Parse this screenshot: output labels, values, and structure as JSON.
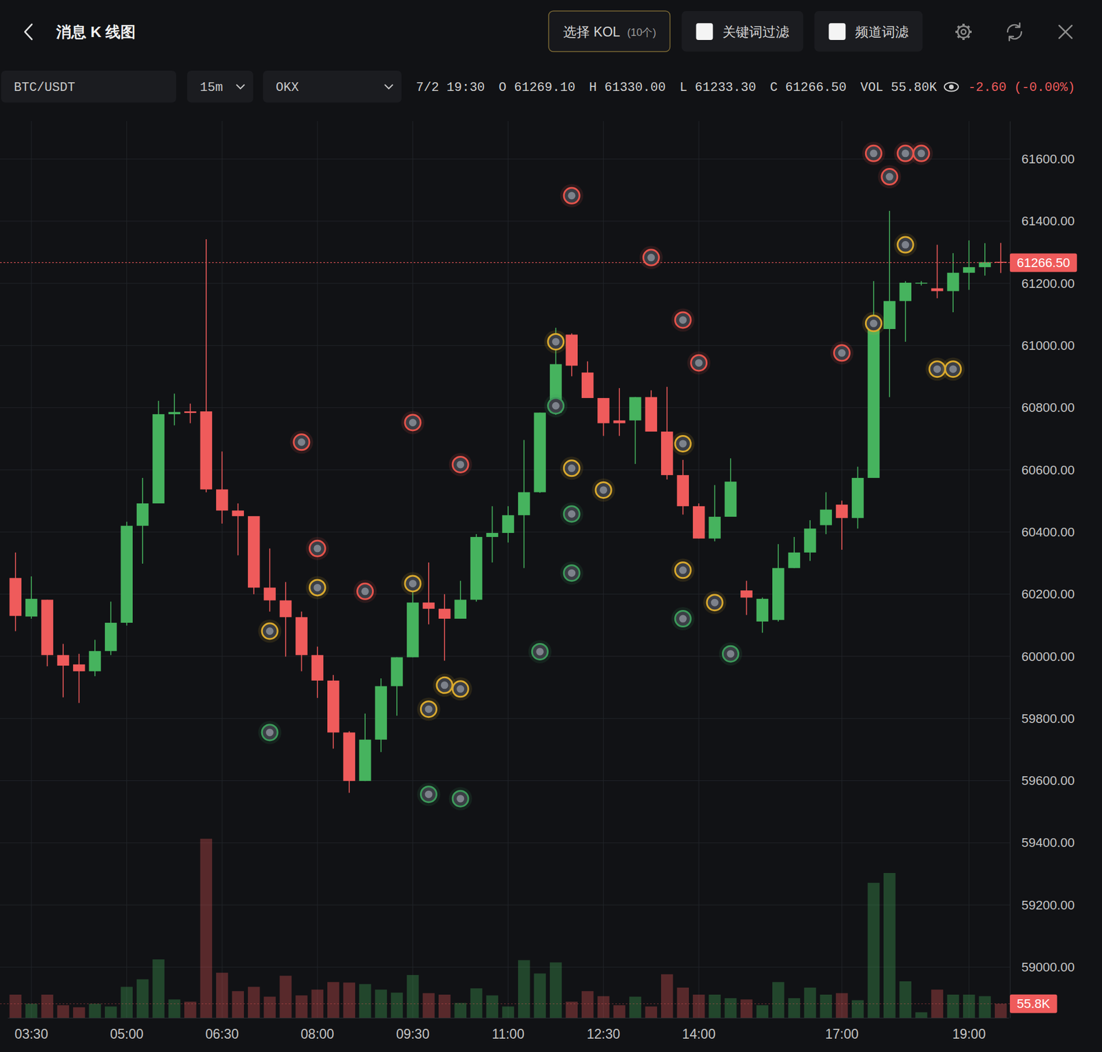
{
  "app": {
    "title": "消息 K 线图",
    "kol_button": {
      "label": "选择 KOL",
      "count": "(10个)"
    },
    "filters": [
      "关键词过滤",
      "频道词滤"
    ],
    "symbol": "BTC/USDT",
    "interval": "15m",
    "exchange": "OKX",
    "info": {
      "time": "7/2 19:30",
      "fields": [
        "O 61269.10",
        "H 61330.00",
        "L 61233.30",
        "C 61266.50",
        "VOL 55.80K"
      ],
      "change": "-2.60 (-0.00%)"
    }
  },
  "chart_data": {
    "type": "candlestick",
    "categories": [
      null,
      "03:30",
      null,
      null,
      null,
      null,
      null,
      "05:00",
      null,
      null,
      null,
      null,
      null,
      "06:30",
      null,
      null,
      null,
      null,
      null,
      "08:00",
      null,
      null,
      null,
      null,
      null,
      "09:30",
      null,
      null,
      null,
      null,
      null,
      "11:00",
      null,
      null,
      null,
      null,
      null,
      "12:30",
      null,
      null,
      null,
      null,
      null,
      "14:00",
      null,
      null,
      null,
      null,
      null,
      null,
      null,
      null,
      "17:00",
      null,
      null,
      null,
      null,
      null,
      null,
      null,
      "19:00",
      null,
      null
    ],
    "series": [
      {
        "type": "candlestick",
        "open": [
          60252,
          60128,
          60182,
          60004,
          59974,
          59952,
          60017,
          60108,
          60420,
          60492,
          60779,
          60788,
          60788,
          60537,
          60469,
          60451,
          60221,
          60180,
          60126,
          60004,
          59922,
          59755,
          59599,
          59732,
          59904,
          59997,
          60173,
          60153,
          60121,
          60182,
          60384,
          60397,
          60454,
          60528,
          60784,
          61035,
          60913,
          60831,
          60759,
          60759,
          60834,
          60723,
          60583,
          60483,
          60379,
          60449,
          60212,
          60112,
          60117,
          60284,
          60334,
          60422,
          60488,
          60445,
          60574,
          61053,
          61143,
          61200,
          61184,
          61175,
          61234,
          61252,
          61269.1
        ],
        "high": [
          60334,
          60257,
          60182,
          60040,
          60008,
          60053,
          60176,
          60433,
          60574,
          60822,
          60845,
          60813,
          61342,
          60659,
          60492,
          60451,
          60347,
          60239,
          60144,
          60031,
          59940,
          59759,
          59816,
          59929,
          59997,
          60257,
          60302,
          60200,
          60243,
          60393,
          60483,
          60483,
          60696,
          60784,
          61057,
          61039,
          60949,
          60831,
          60863,
          60834,
          60856,
          60867,
          60632,
          60492,
          60551,
          60637,
          60243,
          60189,
          60361,
          60384,
          60438,
          60528,
          60501,
          60610,
          61207,
          61433,
          61207,
          61207,
          61324,
          61297,
          61338,
          61329,
          61330
        ],
        "low": [
          60081,
          60121,
          59968,
          59868,
          59850,
          59936,
          60004,
          60099,
          60298,
          60492,
          60743,
          60750,
          60528,
          60427,
          60325,
          60200,
          60144,
          59999,
          59952,
          59866,
          59703,
          59561,
          59599,
          59692,
          59809,
          59997,
          60103,
          59986,
          60121,
          60176,
          60302,
          60366,
          60284,
          60526,
          60777,
          60901,
          60831,
          60709,
          60709,
          60619,
          60723,
          60569,
          60456,
          60379,
          60370,
          60449,
          60133,
          60076,
          60112,
          60284,
          60307,
          60393,
          60343,
          60411,
          60574,
          60834,
          61012,
          61193,
          61152,
          61107,
          61179,
          61225,
          61233.3
        ],
        "close": [
          60130,
          60185,
          60004,
          59970,
          59952,
          60017,
          60108,
          60420,
          60492,
          60779,
          60786,
          60783,
          60537,
          60469,
          60451,
          60221,
          60180,
          60126,
          60004,
          59922,
          59755,
          59599,
          59732,
          59904,
          59997,
          60173,
          60153,
          60121,
          60182,
          60384,
          60397,
          60454,
          60528,
          60784,
          60940,
          60935,
          60831,
          60750,
          60750,
          60834,
          60723,
          60583,
          60483,
          60379,
          60449,
          60562,
          60189,
          60185,
          60284,
          60334,
          60411,
          60472,
          60445,
          60574,
          61053,
          61143,
          61202,
          61202,
          61175,
          61234,
          61252,
          61268,
          61266.5
        ]
      },
      {
        "type": "bar",
        "axis": "y2",
        "values": [
          92,
          56,
          92,
          50,
          42,
          56,
          45,
          123,
          153,
          232,
          73,
          64,
          711,
          179,
          106,
          123,
          84,
          167,
          89,
          112,
          142,
          140,
          134,
          112,
          100,
          170,
          98,
          92,
          59,
          117,
          89,
          45,
          229,
          176,
          220,
          64,
          106,
          86,
          50,
          84,
          45,
          173,
          120,
          92,
          92,
          78,
          73,
          50,
          142,
          78,
          120,
          92,
          98,
          70,
          536,
          575,
          145,
          22,
          112,
          92,
          92,
          86,
          55.8
        ]
      },
      {
        "type": "scatter",
        "x": [
          18,
          16,
          16,
          19,
          19,
          22,
          25,
          28,
          25,
          27,
          28,
          26,
          26,
          28,
          35,
          40,
          34,
          34,
          35,
          35,
          35,
          33,
          37,
          42,
          43,
          42,
          42,
          44,
          42,
          45,
          54,
          56,
          57,
          55,
          56,
          54,
          52,
          58,
          59
        ],
        "values": [
          60689,
          60081,
          59755,
          60347,
          60221,
          60209,
          60752,
          60617,
          60234,
          59907,
          59895,
          59830,
          59556,
          59542,
          61482,
          61283,
          61012,
          60806,
          60605,
          60458,
          60268,
          60015,
          60535,
          61082,
          60944,
          60684,
          60277,
          60173,
          60121,
          60008,
          61618,
          61618,
          61618,
          61543,
          61324,
          61071,
          60976,
          60924,
          60924
        ],
        "colors": [
          "#e5534b",
          "#d9a92e",
          "#3c9a5a",
          "#e5534b",
          "#d9a92e",
          "#e5534b",
          "#e5534b",
          "#e5534b",
          "#d9a92e",
          "#d9a92e",
          "#d9a92e",
          "#d9a92e",
          "#3c9a5a",
          "#3c9a5a",
          "#e5534b",
          "#e5534b",
          "#d9a92e",
          "#3c9a5a",
          "#d9a92e",
          "#3c9a5a",
          "#3c9a5a",
          "#3c9a5a",
          "#d9a92e",
          "#e5534b",
          "#e5534b",
          "#d9a92e",
          "#d9a92e",
          "#d9a92e",
          "#3c9a5a",
          "#3c9a5a",
          "#e5534b",
          "#e5534b",
          "#e5534b",
          "#e5534b",
          "#d9a92e",
          "#d9a92e",
          "#e5534b",
          "#d9a92e",
          "#d9a92e"
        ]
      }
    ],
    "ylim": [
      58837,
      61722
    ],
    "yticks": [
      {
        "value": 59000,
        "label": "59000.00"
      },
      {
        "value": 59200,
        "label": "59200.00"
      },
      {
        "value": 59400,
        "label": "59400.00"
      },
      {
        "value": 59600,
        "label": "59600.00"
      },
      {
        "value": 59800,
        "label": "59800.00"
      },
      {
        "value": 60000,
        "label": "60000.00"
      },
      {
        "value": 60200,
        "label": "60200.00"
      },
      {
        "value": 60400,
        "label": "60400.00"
      },
      {
        "value": 60600,
        "label": "60600.00"
      },
      {
        "value": 60800,
        "label": "60800.00"
      },
      {
        "value": 61000,
        "label": "61000.00"
      },
      {
        "value": 61200,
        "label": "61200.00"
      },
      {
        "value": 61400,
        "label": "61400.00"
      },
      {
        "value": 61600,
        "label": "61600.00"
      }
    ],
    "y2lim": [
      0,
      3560
    ],
    "grid": true,
    "annotations": [
      {
        "text": "61266.50",
        "y": 61266.5
      },
      {
        "text": "55.8K",
        "y": 55.8,
        "axis": "y2"
      }
    ]
  }
}
